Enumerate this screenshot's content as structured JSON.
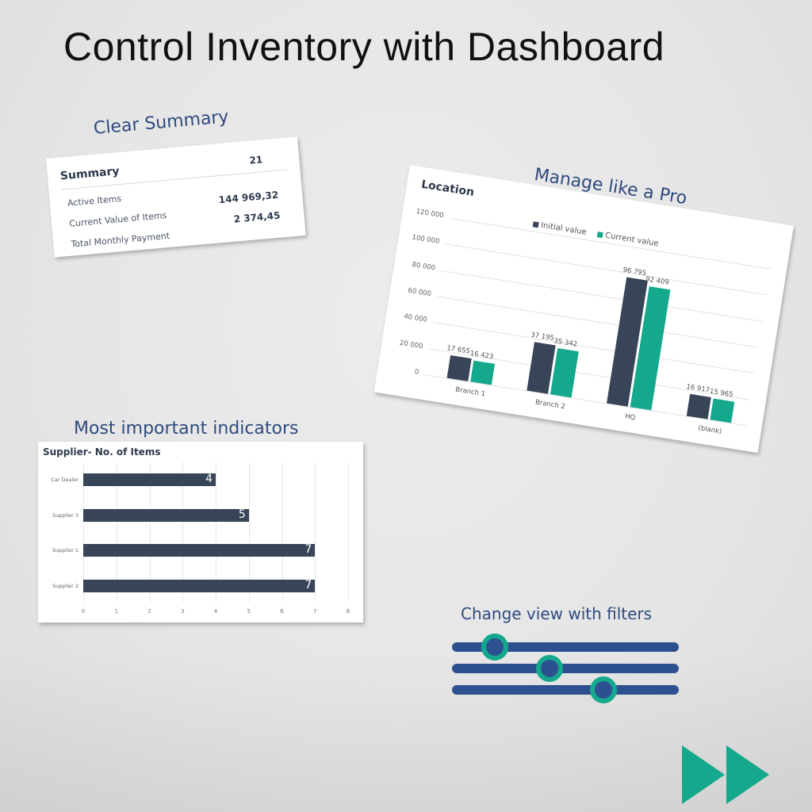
{
  "page": {
    "title": "Control Inventory with Dashboard"
  },
  "sections": {
    "summary_heading": "Clear Summary",
    "location_heading": "Manage like a Pro",
    "indicators_heading": "Most important indicators",
    "filters_heading": "Change view with filters"
  },
  "summary": {
    "title": "Summary",
    "count": "21",
    "rows": [
      {
        "label": "Active Items",
        "value": "144 969,32"
      },
      {
        "label": "Current Value of Items",
        "value": "2 374,45"
      },
      {
        "label": "Total Monthly Payment",
        "value": ""
      }
    ]
  },
  "colors": {
    "dark_navy": "#384457",
    "teal": "#14a98c",
    "heading_blue": "#2e4a7e",
    "slider_blue": "#2d5190"
  },
  "icons": {
    "filter": "sliders-icon",
    "next": "fast-forward-icon"
  },
  "chart_data": [
    {
      "type": "bar",
      "title": "Location",
      "categories": [
        "Branch 1",
        "Branch 2",
        "HQ",
        "(blank)"
      ],
      "series": [
        {
          "name": "Initial value",
          "color": "#384457",
          "values": [
            17655,
            37195,
            96795,
            16917
          ],
          "labels": [
            "17 655",
            "37 195",
            "96 795",
            "16 917"
          ]
        },
        {
          "name": "Current value",
          "color": "#14a98c",
          "values": [
            16423,
            35342,
            92409,
            15965
          ],
          "labels": [
            "16 423",
            "35 342",
            "92 409",
            "15 965"
          ]
        }
      ],
      "yticks": [
        "0",
        "20 000",
        "40 000",
        "60 000",
        "80 000",
        "100 000",
        "120 000"
      ],
      "ylim": [
        0,
        120000
      ],
      "legend_position": "top",
      "grid": true,
      "xlabel": "",
      "ylabel": ""
    },
    {
      "type": "bar",
      "orientation": "horizontal",
      "title": "Supplier- No. of Items",
      "categories": [
        "Car Dealer",
        "Supplier 3",
        "Supplier 1",
        "Supplier 2"
      ],
      "values": [
        4,
        5,
        7,
        7
      ],
      "value_labels": [
        "4",
        "5",
        "7",
        "7"
      ],
      "xticks": [
        "0",
        "1",
        "2",
        "3",
        "4",
        "5",
        "6",
        "7",
        "8"
      ],
      "xlim": [
        0,
        8
      ],
      "grid": true,
      "color": "#384457",
      "xlabel": "",
      "ylabel": ""
    }
  ]
}
